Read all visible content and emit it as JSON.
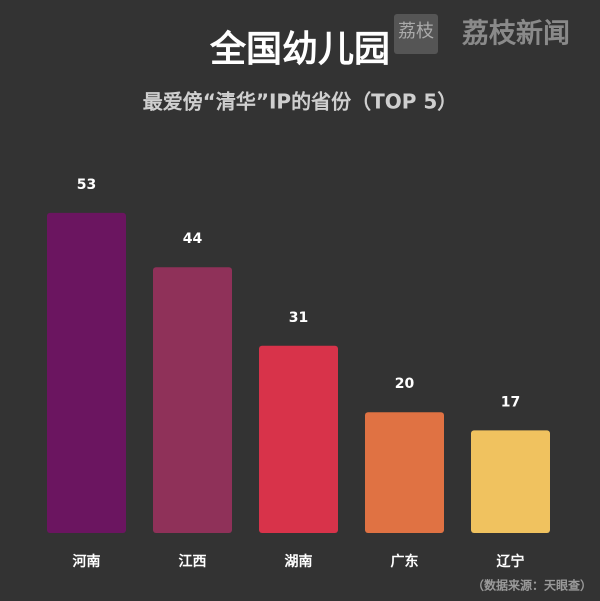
{
  "chart_data": {
    "type": "bar",
    "title": "全国幼儿园",
    "subtitle": "最爱傍“清华”IP的省份（TOP 5）",
    "categories": [
      "河南",
      "江西",
      "湖南",
      "广东",
      "辽宁"
    ],
    "values": [
      53,
      44,
      31,
      20,
      17
    ],
    "colors": [
      "#6b1560",
      "#8f3159",
      "#d8334a",
      "#e07243",
      "#f0c25f"
    ],
    "source": "（数据来源：天眼查）"
  },
  "watermark": {
    "logo": "荔枝",
    "text": "荔枝新闻"
  }
}
